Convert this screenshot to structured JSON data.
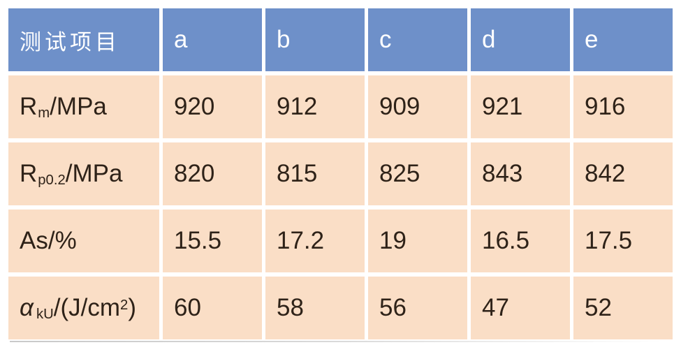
{
  "table": {
    "header_row": {
      "first_label": "测试项目",
      "columns": [
        "a",
        "b",
        "c",
        "d",
        "e"
      ]
    },
    "rows": [
      {
        "label": {
          "pre": "R",
          "sub": "m",
          "mid": "/MPa",
          "sup": "",
          "post": ""
        },
        "values": [
          "920",
          "912",
          "909",
          "921",
          "916"
        ]
      },
      {
        "label": {
          "pre": "R",
          "sub": "p0.2",
          "mid": "/MPa",
          "sup": "",
          "post": ""
        },
        "values": [
          "820",
          "815",
          "825",
          "843",
          "842"
        ]
      },
      {
        "label": {
          "pre": "As/%",
          "sub": "",
          "mid": "",
          "sup": "",
          "post": ""
        },
        "values": [
          "15.5",
          "17.2",
          "19",
          "16.5",
          "17.5"
        ]
      },
      {
        "label": {
          "pre": "α",
          "sub": "kU",
          "mid": "/(J/cm",
          "sup": "2",
          "post": ")"
        },
        "values": [
          "60",
          "58",
          "56",
          "47",
          "52"
        ]
      }
    ]
  },
  "colors": {
    "header_bg": "#6e90c9",
    "header_text": "#ffffff",
    "cell_bg": "#fadec6",
    "cell_text": "#2e2218",
    "gap": "#ffffff"
  },
  "chart_data": {
    "type": "table",
    "columns": [
      "测试项目",
      "a",
      "b",
      "c",
      "d",
      "e"
    ],
    "rows": [
      [
        "Rm/MPa",
        920,
        912,
        909,
        921,
        916
      ],
      [
        "Rp0.2/MPa",
        820,
        815,
        825,
        843,
        842
      ],
      [
        "As/%",
        15.5,
        17.2,
        19,
        16.5,
        17.5
      ],
      [
        "αkU/(J/cm2)",
        60,
        58,
        56,
        47,
        52
      ]
    ]
  }
}
